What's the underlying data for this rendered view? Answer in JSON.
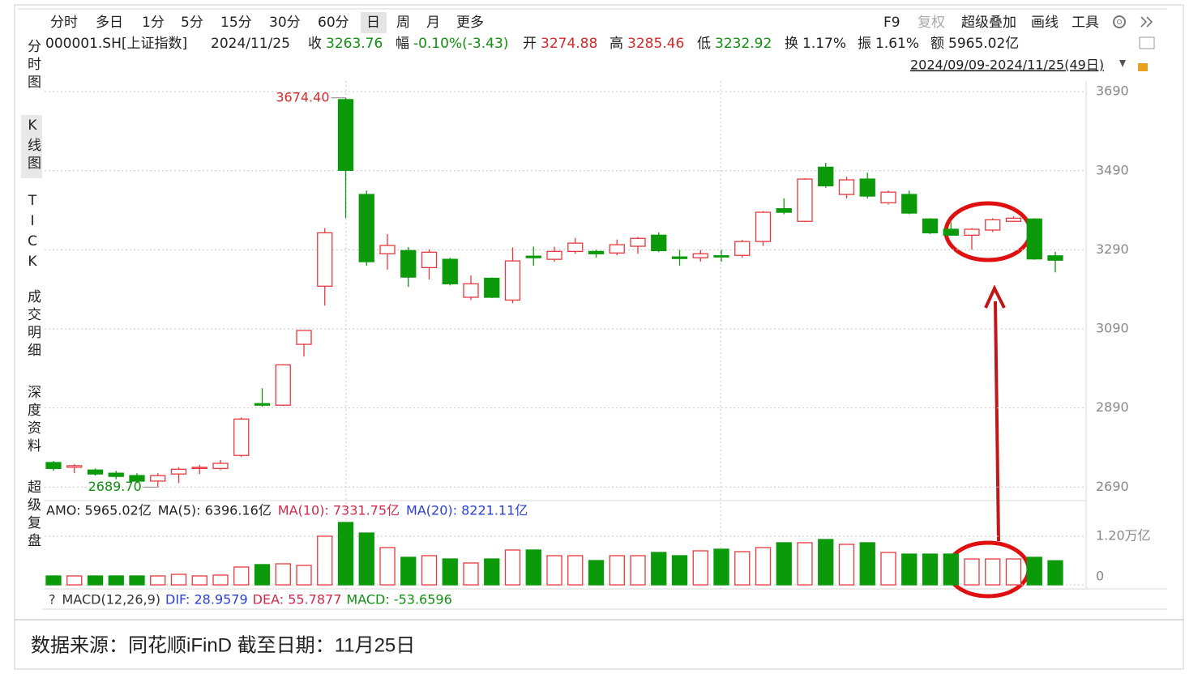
{
  "toolbar": {
    "periods": [
      "分时",
      "多日",
      "1分",
      "5分",
      "15分",
      "30分",
      "60分",
      "日",
      "周",
      "月",
      "更多"
    ],
    "tools": [
      "F9",
      "复权",
      "超级叠加",
      "画线",
      "工具"
    ]
  },
  "info": {
    "code": "000001.SH[上证指数]",
    "date": "2024/11/25",
    "fields": [
      {
        "label": "收",
        "value": "3263.76",
        "color": "#109010"
      },
      {
        "label": "幅",
        "value": "-0.10%(-3.43)",
        "color": "#109010"
      },
      {
        "label": "开",
        "value": "3274.88",
        "color": "#d42a2a"
      },
      {
        "label": "高",
        "value": "3285.46",
        "color": "#d42a2a"
      },
      {
        "label": "低",
        "value": "3232.92",
        "color": "#109010"
      },
      {
        "label": "换",
        "value": "1.17%",
        "color": "#222222"
      },
      {
        "label": "振",
        "value": "1.61%",
        "color": "#222222"
      },
      {
        "label": "额",
        "value": "5965.02亿",
        "color": "#222222"
      }
    ],
    "range": "2024/09/09-2024/11/25(49日)"
  },
  "sidebar": [
    "分时图",
    "K线图",
    "TICK",
    "成交明细",
    "深度资料",
    "超级复盘"
  ],
  "chart_data": {
    "type": "candlestick",
    "open": [
      2752,
      2740,
      2733,
      2725,
      2719,
      2705,
      2723,
      2737,
      2737,
      2770,
      2901,
      2897,
      3051,
      3198,
      3670,
      3430,
      3280,
      3288,
      3245,
      3266,
      3170,
      3218,
      3163,
      3274,
      3266,
      3286,
      3286,
      3282,
      3299,
      3327,
      3272,
      3270,
      3275,
      3276,
      3311,
      3394,
      3362,
      3499,
      3430,
      3469,
      3409,
      3430,
      3368,
      3342,
      3327,
      3340,
      3362,
      3368,
      3274.88
    ],
    "high": [
      2756,
      2748,
      2737,
      2731,
      2725,
      2725,
      2740,
      2746,
      2758,
      2866,
      2940,
      3001,
      3086,
      3345,
      3674.4,
      3440,
      3330,
      3297,
      3291,
      3270,
      3225,
      3220,
      3296,
      3298,
      3298,
      3320,
      3290,
      3316,
      3323,
      3334,
      3290,
      3290,
      3290,
      3315,
      3388,
      3420,
      3471,
      3510,
      3475,
      3485,
      3440,
      3440,
      3370,
      3360,
      3345,
      3370,
      3375,
      3370,
      3285.46
    ],
    "low": [
      2731,
      2725,
      2719,
      2710,
      2700,
      2689.7,
      2700,
      2723,
      2733,
      2766,
      2893,
      2895,
      3020,
      3149,
      3370,
      3250,
      3240,
      3196,
      3215,
      3200,
      3163,
      3168,
      3155,
      3250,
      3260,
      3280,
      3270,
      3276,
      3280,
      3284,
      3250,
      3260,
      3260,
      3270,
      3300,
      3380,
      3360,
      3447,
      3420,
      3420,
      3405,
      3380,
      3330,
      3326,
      3290,
      3335,
      3360,
      3265,
      3232.92
    ],
    "close": [
      2737,
      2744,
      2723,
      2717,
      2705,
      2719,
      2735,
      2740,
      2750,
      2862,
      2897,
      2999,
      3086,
      3333,
      3491,
      3260,
      3301,
      3221,
      3284,
      3204,
      3204,
      3170,
      3262,
      3270,
      3286,
      3307,
      3280,
      3303,
      3319,
      3288,
      3268,
      3280,
      3273,
      3311,
      3385,
      3385,
      3469,
      3452,
      3467,
      3426,
      3436,
      3383,
      3333,
      3327,
      3342,
      3366,
      3370,
      3267,
      3263.76
    ],
    "up_color": "#e8383d",
    "down_color": "#0a9a0a",
    "ylim": [
      2668,
      3717
    ],
    "yticks": [
      3690,
      3490,
      3290,
      3090,
      2890,
      2690
    ],
    "annotations": [
      {
        "label": "3674.40",
        "value": 3674.4,
        "color": "#d42a2a"
      },
      {
        "label": "2689.70",
        "value": 2689.7,
        "color": "#109010"
      }
    ],
    "volume": {
      "values": [
        2200,
        2200,
        2200,
        2200,
        2200,
        2200,
        2600,
        2200,
        2400,
        4400,
        5000,
        5200,
        4800,
        12000,
        15400,
        12800,
        9200,
        6800,
        7200,
        6400,
        5400,
        6400,
        8600,
        8600,
        7200,
        7200,
        6000,
        7200,
        7200,
        8000,
        7200,
        8400,
        8800,
        8200,
        9200,
        10400,
        10400,
        11200,
        10000,
        10400,
        8000,
        7600,
        7600,
        7600,
        6400,
        6400,
        6400,
        6800,
        5965.02
      ],
      "ylim": [
        0,
        16400
      ],
      "yticks": [
        {
          "value": 12000,
          "label": "1.20万亿"
        },
        0
      ],
      "legend": [
        {
          "text": "AMO: 5965.02亿",
          "color": "#222222"
        },
        {
          "text": "MA(5): 6396.16亿",
          "color": "#222222"
        },
        {
          "text": "MA(10): 7331.75亿",
          "color": "#d42a4a"
        },
        {
          "text": "MA(20): 8221.11亿",
          "color": "#2a40d4"
        }
      ]
    },
    "macd": [
      "?",
      "MACD(12,26,9)",
      "DIF: 28.9579",
      "DEA: 55.7877",
      "MACD: -53.6596"
    ]
  },
  "footer": "数据来源：同花顺iFinD 截至日期：11月25日"
}
